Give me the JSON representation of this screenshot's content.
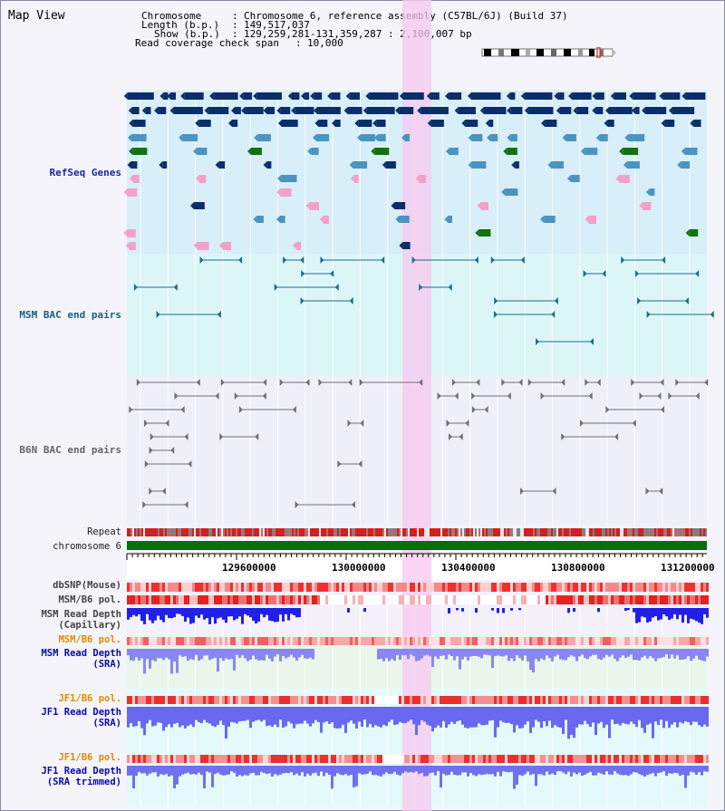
{
  "header": {
    "title": "Map View",
    "chromosome_key": "Chromosome",
    "chromosome_value": "Chromosome 6, reference assembly (C57BL/6J) (Build 37)",
    "length_key": "Length (b.p.)",
    "length_value": "149,517,037",
    "show_key": "Show (b.p.)",
    "show_value": "129,259,281-131,359,287 : 2,100,007 bp",
    "coverage_key": "Read coverage check span",
    "coverage_value": "10,000"
  },
  "tracks": {
    "refseq": "RefSeq Genes",
    "msm_bac": "MSM BAC end pairs",
    "b6n_bac": "B6N BAC end pairs",
    "repeat": "Repeat",
    "chromosome": "chromosome 6",
    "dbsnp": "dbSNP(Mouse)",
    "msm_b6_pol": "MSM/B6 pol.",
    "msm_depth_cap_1": "MSM Read Depth",
    "msm_depth_cap_2": "(Capillary)",
    "msm_b6_pol_2": "MSM/B6 pol.",
    "msm_depth_sra_1": "MSM Read Depth",
    "msm_depth_sra_2": "(SRA)",
    "jf1_b6_pol": "JF1/B6 pol.",
    "jf1_depth_sra_1": "JF1 Read Depth",
    "jf1_depth_sra_2": "(SRA)",
    "jf1_b6_pol_2": "JF1/B6 pol.",
    "jf1_depth_trim_1": "JF1 Read Depth",
    "jf1_depth_trim_2": "(SRA trimmed)"
  },
  "axis": {
    "ticks": [
      "129600000",
      "130000000",
      "130400000",
      "130800000",
      "131200000"
    ]
  },
  "colors": {
    "refseq_bg": "#d8eef8",
    "msm_bg": "#dcf6f8",
    "b6n_bg": "#eef0f8",
    "highlight": "#f8c8f0",
    "navy": "#0a2e6a",
    "steel": "#4a94c0",
    "green": "#127212",
    "pink": "#f4a0c8",
    "teal": "#1a6e8a",
    "gray_feat": "#707070",
    "chrom_green": "#087008",
    "label_blue": "#1a2aa0",
    "label_teal": "#1a6080",
    "label_orange": "#e08a00",
    "label_darkblue": "#0a0aa8"
  }
}
